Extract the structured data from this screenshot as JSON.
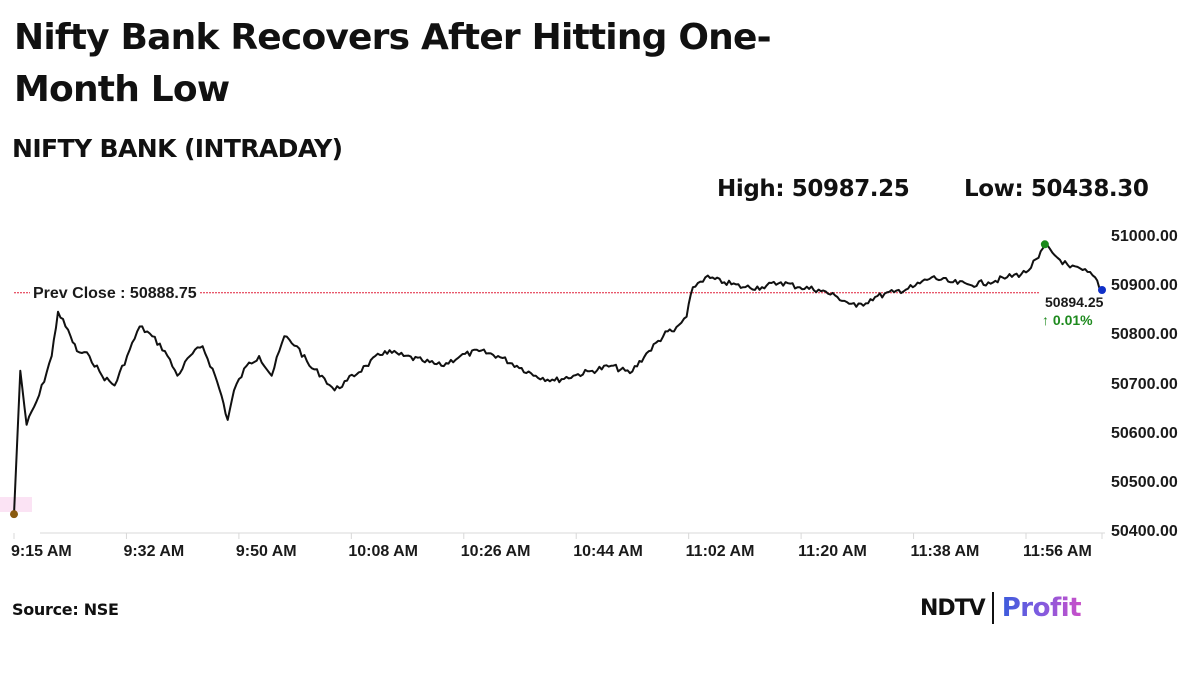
{
  "header": {
    "title": "Nifty Bank Recovers After Hitting One-Month Low",
    "subtitle": "NIFTY BANK (INTRADAY)",
    "high_label": "High: 50987.25",
    "low_label": "Low: 50438.30"
  },
  "annotations": {
    "prev_close_label": "Prev Close : 50888.75",
    "last_value": "50894.25",
    "last_change": "↑ 0.01%"
  },
  "footer": {
    "source": "Source: NSE",
    "logo_left": "NDTV",
    "logo_right": "Profit"
  },
  "colors": {
    "line": "#111111",
    "prev_close": "#e0203a",
    "high_marker": "#1a8a1a",
    "low_marker": "#8a5a10",
    "last_marker": "#1030c8",
    "change_up": "#1e8a1e",
    "axis": "#d8d8d8"
  },
  "chart_data": {
    "type": "line",
    "title": "NIFTY BANK (INTRADAY)",
    "xlabel": "",
    "ylabel": "",
    "x_tick_labels": [
      "9:15 AM",
      "9:32 AM",
      "9:50 AM",
      "10:08 AM",
      "10:26 AM",
      "10:44 AM",
      "11:02 AM",
      "11:20 AM",
      "11:38 AM",
      "11:56 AM"
    ],
    "y_tick_labels": [
      "51000.00",
      "50900.00",
      "50800.00",
      "50700.00",
      "50600.00",
      "50500.00",
      "50400.00"
    ],
    "ylim": [
      50400,
      51000
    ],
    "grid": false,
    "legend": null,
    "prev_close": 50888.75,
    "high": 50987.25,
    "low": 50438.3,
    "last": 50894.25,
    "change_pct": 0.01,
    "series": [
      {
        "name": "NIFTY BANK",
        "x": [
          "9:15",
          "9:16",
          "9:17",
          "9:19",
          "9:21",
          "9:22",
          "9:24",
          "9:25",
          "9:27",
          "9:29",
          "9:31",
          "9:33",
          "9:35",
          "9:37",
          "9:39",
          "9:41",
          "9:43",
          "9:45",
          "9:47",
          "9:48",
          "9:49",
          "9:50",
          "9:52",
          "9:54",
          "9:56",
          "9:58",
          "10:00",
          "10:02",
          "10:04",
          "10:06",
          "10:08",
          "10:11",
          "10:14",
          "10:17",
          "10:20",
          "10:23",
          "10:26",
          "10:29",
          "10:32",
          "10:35",
          "10:38",
          "10:41",
          "10:44",
          "10:47",
          "10:50",
          "10:53",
          "10:56",
          "10:59",
          "11:00",
          "11:02",
          "11:03",
          "11:05",
          "11:08",
          "11:11",
          "11:14",
          "11:17",
          "11:20",
          "11:23",
          "11:26",
          "11:29",
          "11:32",
          "11:35",
          "11:38",
          "11:41",
          "11:44",
          "11:47",
          "11:50",
          "11:53",
          "11:56",
          "11:58",
          "11:59",
          "12:01",
          "12:03",
          "12:05",
          "12:07",
          "12:08"
        ],
        "values": [
          50438,
          50730,
          50620,
          50680,
          50760,
          50850,
          50800,
          50770,
          50760,
          50720,
          50700,
          50760,
          50820,
          50800,
          50770,
          50720,
          50760,
          50780,
          50720,
          50680,
          50630,
          50690,
          50740,
          50760,
          50720,
          50800,
          50780,
          50740,
          50720,
          50690,
          50710,
          50740,
          50770,
          50760,
          50750,
          50740,
          50760,
          50770,
          50760,
          50740,
          50720,
          50710,
          50720,
          50730,
          50740,
          50725,
          50770,
          50810,
          50810,
          50840,
          50900,
          50920,
          50910,
          50900,
          50900,
          50910,
          50900,
          50895,
          50880,
          50860,
          50880,
          50890,
          50900,
          50920,
          50910,
          50905,
          50910,
          50920,
          50930,
          50960,
          50985,
          50960,
          50940,
          50935,
          50920,
          50894
        ]
      }
    ]
  }
}
